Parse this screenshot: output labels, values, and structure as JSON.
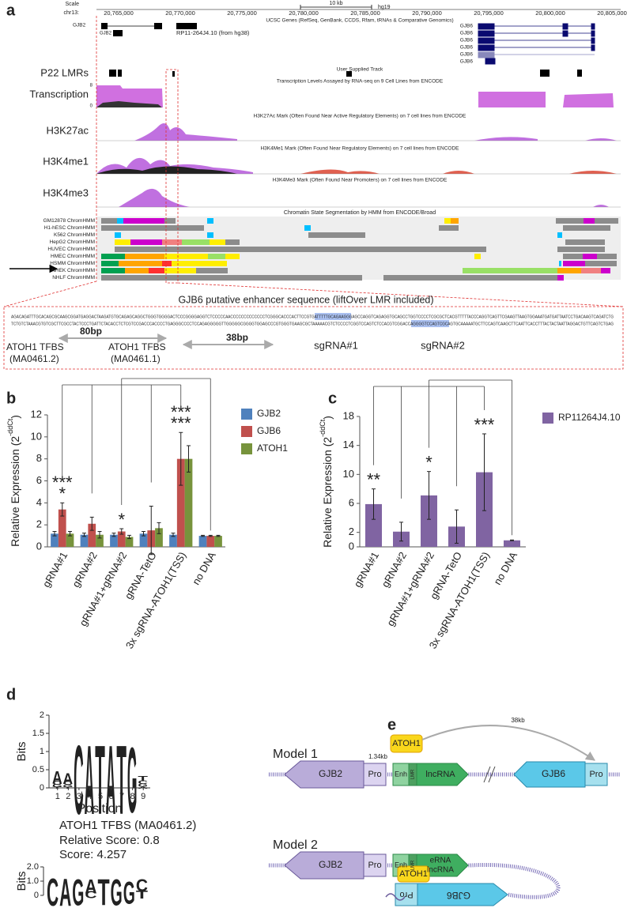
{
  "panel_labels": [
    "a",
    "b",
    "c",
    "d",
    "e"
  ],
  "browser": {
    "scale": "Scale",
    "chrom": "chr13:",
    "scalebar": "10 kb",
    "assembly": "hg19",
    "positions": [
      "20,765,000",
      "20,770,000",
      "20,775,000",
      "20,780,000",
      "20,785,000",
      "20,790,000",
      "20,795,000",
      "20,800,000",
      "20,805,000"
    ],
    "genes_track": "UCSC Genes (RefSeq, GenBank, CCDS, Rfam, tRNAs & Comparative Genomics)",
    "genes": [
      "GJB2",
      "GJB2",
      "RP11-264J4.10 (from hg38)",
      "GJB6",
      "GJB6",
      "GJB6",
      "GJB6",
      "GJB6",
      "GJB6"
    ],
    "tracks": [
      {
        "label": "P22 LMRs",
        "title": "User Supplied Track"
      },
      {
        "label": "Transcription",
        "title": "Transcription Levels Assayed by RNA-seq on 9 Cell Lines from ENCODE"
      },
      {
        "label": "H3K27ac",
        "title": "H3K27Ac Mark (Often Found Near Active Regulatory Elements) on 7 cell lines from ENCODE"
      },
      {
        "label": "H3K4me1",
        "title": "H3K4Me1 Mark (Often Found Near Regulatory Elements) on 7 cell lines from ENCODE"
      },
      {
        "label": "H3K4me3",
        "title": "H3K4Me3 Mark (Often Found Near Promoters) on 7 cell lines from ENCODE"
      }
    ],
    "transcription_scale": [
      "8",
      "0"
    ],
    "chromhmm_title": "Chromatin State Segmentation by HMM from ENCODE/Broad",
    "chromhmm": [
      "GM12878 ChromHMM",
      "H1-hESC ChromHMM",
      "K562 ChromHMM",
      "HepG2 ChromHMM",
      "HUVEC ChromHMM",
      "HMEC ChromHMM",
      "HSMM ChromHMM",
      "NHEK ChromHMM",
      "NHLF ChromHMM"
    ]
  },
  "enhancer": {
    "title": "GJB6 putative enhancer sequence (liftOver LMR included)",
    "sequence": [
      "AGACAGATTTGCACAGCGCAAGCGGATGAGGACTAAGATGTGCAGAGCAGGCTGGGTGGGGACTCCCGGGGAGGTCTCCCCCAACCCCCCCCCCCCCTCGGGCACCCACTTCCGTGATTTTTGCAGAAGGGAGCCAGGTCAGAGGTGCAGCCTGGTCCCCTCGCGCTCACGTTTTTACCCAGGTCAGTTCGAAGTTAAGTGGAAATGATGATTAATCCTGACAAGTCAGATCTG",
      "TCTGTCTAAACGTGTCGCTTCGCCTACTCCCTGATTCTACACCTCTCGTCCGACCCACCCCTGAGGGCCCCTCCAGAGGGGGTTGGGGGCGGGGTGGAGCCCGTGGGTGAAGCGCTAAAAACGTCTCCCCTCGGTCCAGTCTCCACGTCGGACCAGGGGTCCAGTCGCAGTGCAAAAATGCTTCCAGTCAAGCTTCAATTCACCTTTACTACTAATTAGGACTGTTCAGTCTGAG"
    ],
    "tfbs1": [
      "ATOH1 TFBS",
      "(MA0461.2)"
    ],
    "tfbs2": [
      "ATOH1 TFBS",
      "(MA0461.1)"
    ],
    "dist1": "80bp",
    "dist2": "38bp",
    "sgrna1": "sgRNA#1",
    "sgrna2": "sgRNA#2"
  },
  "chart_data": [
    {
      "type": "bar",
      "categories": [
        "gRNA#1",
        "gRNA#2",
        "gRNA#1+gRNA#2",
        "gRNA-TetO",
        "3x sgRNA-ATOH1(TSS)",
        "no DNA"
      ],
      "series": [
        {
          "name": "GJB2",
          "color": "#4f81bd",
          "values": [
            1.2,
            1.1,
            1.1,
            1.2,
            1.1,
            1.0
          ],
          "errors": [
            0.2,
            0.15,
            0.15,
            0.2,
            0.15,
            0.05
          ]
        },
        {
          "name": "GJB6",
          "color": "#c0504d",
          "values": [
            3.4,
            2.1,
            1.4,
            1.5,
            8.0,
            1.0
          ],
          "errors": [
            0.6,
            0.6,
            0.25,
            2.2,
            2.4,
            0.05
          ]
        },
        {
          "name": "ATOH1",
          "color": "#77933c",
          "values": [
            1.2,
            1.1,
            0.9,
            1.7,
            8.0,
            1.0
          ],
          "errors": [
            0.2,
            0.3,
            0.15,
            0.5,
            1.2,
            0.05
          ]
        }
      ],
      "ylim": [
        0,
        12
      ],
      "yticks": [
        0,
        2,
        4,
        6,
        8,
        10,
        12
      ],
      "ylabel": [
        "Relative Expression (2",
        "-ddCt",
        ")"
      ],
      "annotations": [
        {
          "category": "gRNA#1",
          "text": "***",
          "color": "#c0504d"
        },
        {
          "category": "gRNA#1",
          "text": "*",
          "color": "#77933c"
        },
        {
          "category": "gRNA#1+gRNA#2",
          "text": "*",
          "color": "#c0504d"
        },
        {
          "category": "3x sgRNA-ATOH1(TSS)",
          "text": "***",
          "color": "#c0504d"
        },
        {
          "category": "3x sgRNA-ATOH1(TSS)",
          "text": "***",
          "color": "#77933c"
        }
      ],
      "legend": "right"
    },
    {
      "type": "bar",
      "categories": [
        "gRNA#1",
        "gRNA#2",
        "gRNA#1+gRNA#2",
        "gRNA-TetO",
        "3x sgRNA-ATOH1(TSS)",
        "no DNA"
      ],
      "series": [
        {
          "name": "RP11264J4.10",
          "color": "#8064a2",
          "values": [
            5.9,
            2.1,
            7.1,
            2.8,
            10.3,
            0.9
          ],
          "errors": [
            2.1,
            1.3,
            3.3,
            2.3,
            5.3,
            0.05
          ]
        }
      ],
      "ylim": [
        0,
        18
      ],
      "yticks": [
        0,
        2,
        6,
        10,
        14,
        18
      ],
      "ylabel": [
        "Relative Expression (2",
        "-ddCt",
        ")"
      ],
      "annotations": [
        {
          "category": "gRNA#1",
          "text": "**",
          "color": "#8064a2"
        },
        {
          "category": "gRNA#1+gRNA#2",
          "text": "*",
          "color": "#8064a2"
        },
        {
          "category": "3x sgRNA-ATOH1(TSS)",
          "text": "***",
          "color": "#8064a2"
        }
      ],
      "legend": "right"
    }
  ],
  "logos": [
    {
      "ylabel": "Bits",
      "xlabel": "Position",
      "ylim": [
        0,
        2
      ],
      "yticks": [
        0,
        0.5,
        1,
        1.5,
        2
      ],
      "xticks": [
        1,
        2,
        3,
        4,
        5,
        6,
        7,
        8,
        9
      ],
      "columns": [
        [
          {
            "letter": "T",
            "bits": 0.05
          },
          {
            "letter": "G",
            "bits": 0.08
          },
          {
            "letter": "C",
            "bits": 0.12
          },
          {
            "letter": "A",
            "bits": 0.35
          }
        ],
        [
          {
            "letter": "T",
            "bits": 0.05
          },
          {
            "letter": "G",
            "bits": 0.07
          },
          {
            "letter": "C",
            "bits": 0.1
          },
          {
            "letter": "A",
            "bits": 0.3
          }
        ],
        [
          {
            "letter": "C",
            "bits": 1.95
          }
        ],
        [
          {
            "letter": "A",
            "bits": 1.95
          }
        ],
        [
          {
            "letter": "T",
            "bits": 1.95
          }
        ],
        [
          {
            "letter": "A",
            "bits": 1.95
          }
        ],
        [
          {
            "letter": "T",
            "bits": 1.95
          }
        ],
        [
          {
            "letter": "G",
            "bits": 1.85
          }
        ],
        [
          {
            "letter": "A",
            "bits": 0.06
          },
          {
            "letter": "G",
            "bits": 0.08
          },
          {
            "letter": "C",
            "bits": 0.1
          },
          {
            "letter": "T",
            "bits": 0.15
          }
        ]
      ]
    },
    {
      "ylabel": "Bits",
      "ylim": [
        0,
        2
      ],
      "yticks": [
        0,
        {
          "value": 1,
          "label": "1.0"
        },
        {
          "value": 2,
          "label": "2.0"
        }
      ],
      "columns": [
        [
          {
            "letter": "C",
            "bits": 1.95
          }
        ],
        [
          {
            "letter": "A",
            "bits": 1.95
          }
        ],
        [
          {
            "letter": "G",
            "bits": 1.9
          }
        ],
        [
          {
            "letter": "C",
            "bits": 0.5
          },
          {
            "letter": "A",
            "bits": 1.0
          }
        ],
        [
          {
            "letter": "T",
            "bits": 1.9
          }
        ],
        [
          {
            "letter": "G",
            "bits": 1.9
          }
        ],
        [
          {
            "letter": "G",
            "bits": 1.6
          }
        ],
        [
          {
            "letter": "T",
            "bits": 0.6
          },
          {
            "letter": "C",
            "bits": 0.9
          }
        ]
      ]
    }
  ],
  "logo_caption": [
    "ATOH1 TFBS (MA0461.2)",
    "Relative Score: 0.8",
    "Score: 4.257"
  ],
  "models": [
    {
      "title": "Model 1",
      "gjb2": "GJB2",
      "pro": "Pro",
      "enh": "Enh",
      "lmr": "LMR",
      "lncrna": "lncRNA",
      "gjb6": "GJB6",
      "pro2": "Pro",
      "atoh1": "ATOH1",
      "dist1": "1.34kb",
      "dist2": "38kb"
    },
    {
      "title": "Model 2",
      "gjb2": "GJB2",
      "pro": "Pro",
      "enh": "Enh",
      "lmr": "LMR",
      "erna": "eRNA",
      "lncrna": "lncRNA",
      "gjb6": "GJB6",
      "pro2": "Pro",
      "atoh1": "ATOH1"
    }
  ]
}
